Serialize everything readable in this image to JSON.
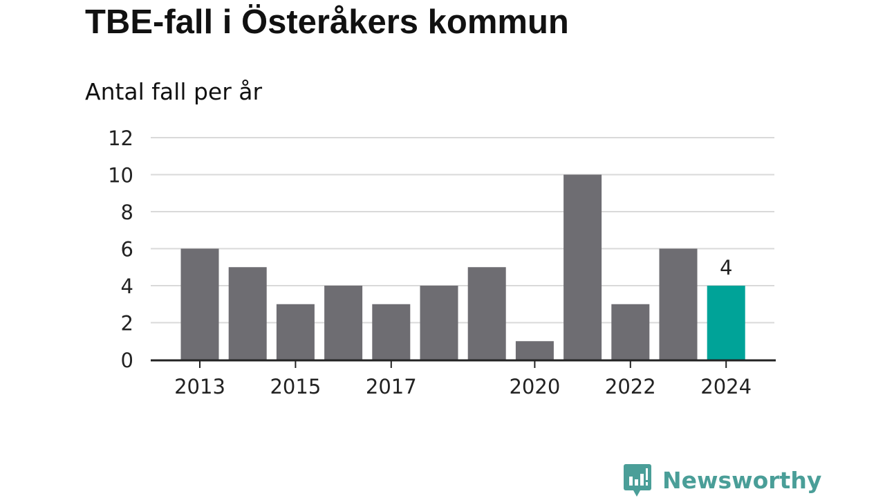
{
  "chart_data": {
    "type": "bar",
    "title": "TBE-fall i Österåkers kommun",
    "subtitle": "Antal fall per år",
    "categories": [
      "2013",
      "2014",
      "2015",
      "2016",
      "2017",
      "2018",
      "2019",
      "2020",
      "2021",
      "2022",
      "2023",
      "2024"
    ],
    "x_tick_labels": [
      "2013",
      "",
      "2015",
      "",
      "2017",
      "",
      "",
      "2020",
      "",
      "2022",
      "",
      "2024"
    ],
    "values": [
      6,
      5,
      3,
      4,
      3,
      4,
      5,
      1,
      10,
      3,
      6,
      4
    ],
    "ylim": [
      0,
      12
    ],
    "yticks": [
      "0",
      "2",
      "4",
      "6",
      "8",
      "10",
      "12"
    ],
    "highlight_index": 11,
    "highlight_label": "4",
    "colors": {
      "bar": "#6e6d72",
      "highlight": "#00a398",
      "grid": "#d9d9d9",
      "axis": "#222222",
      "text": "#222222"
    },
    "grid": true
  },
  "brand": {
    "name": "Newsworthy",
    "icon": "newsworthy-logo-icon",
    "color": "#4a9e98"
  }
}
